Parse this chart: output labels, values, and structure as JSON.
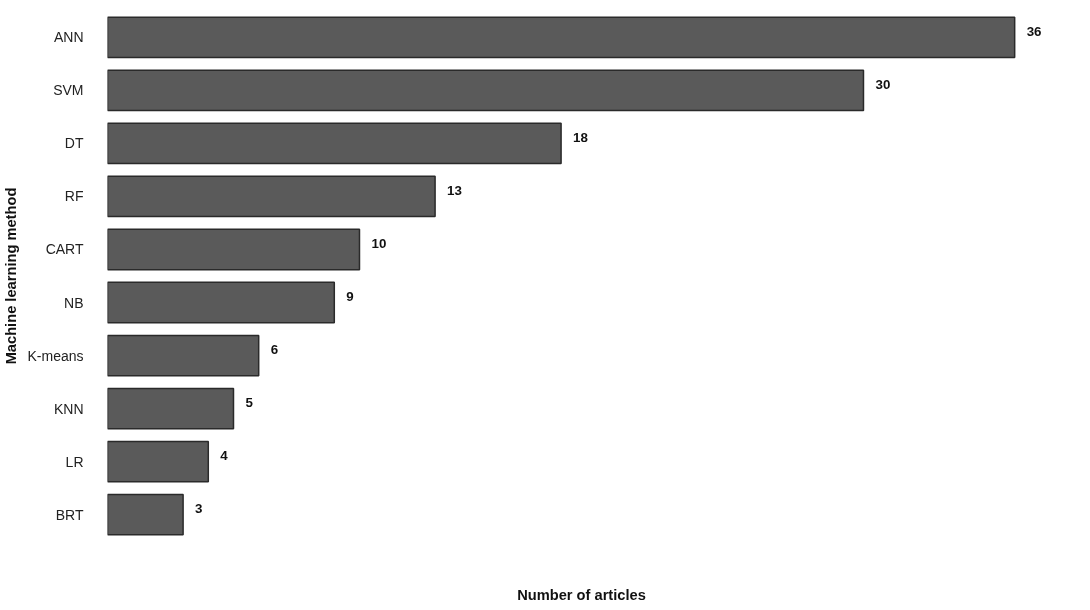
{
  "chart_data": {
    "type": "bar",
    "orientation": "horizontal",
    "xlabel": "Number of articles",
    "ylabel": "Machine learning method",
    "categories": [
      "ANN",
      "SVM",
      "DT",
      "RF",
      "CART",
      "NB",
      "K-means",
      "KNN",
      "LR",
      "BRT"
    ],
    "values": [
      36,
      30,
      18,
      13,
      10,
      9,
      6,
      5,
      4,
      3
    ],
    "color": "#5a5a5a",
    "data_labels": true,
    "tick_labels": "y"
  }
}
